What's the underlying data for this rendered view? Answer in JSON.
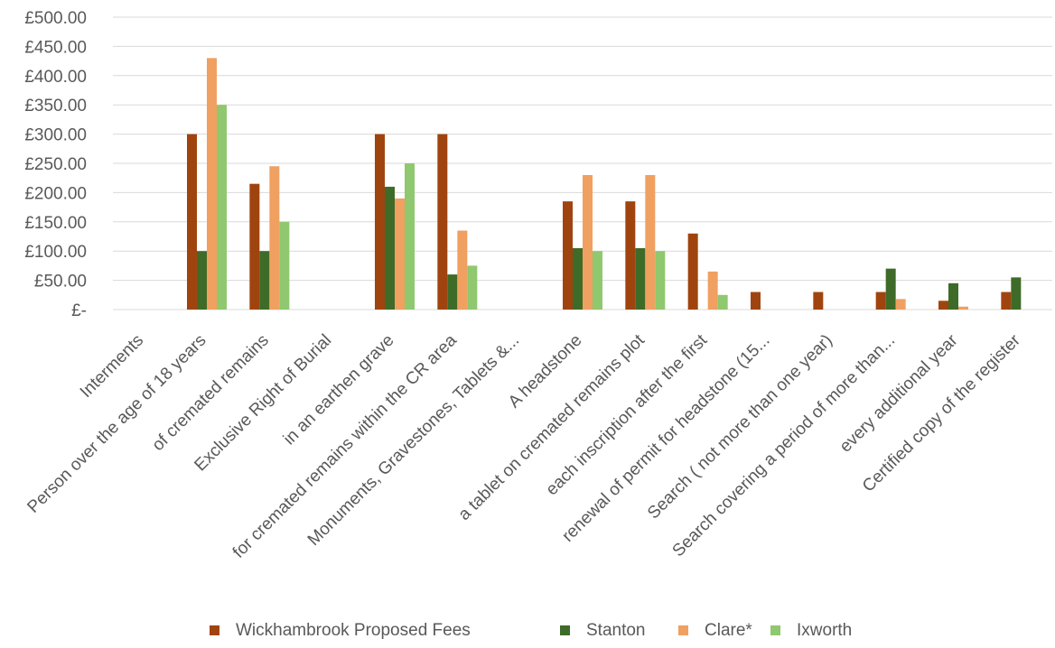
{
  "chart_data": {
    "type": "bar",
    "categories": [
      "Interments",
      "Person over the age of 18 years",
      "of cremated remains",
      "Exclusive Right of Burial",
      "in an earthen grave",
      "for cremated remains within the CR area",
      "Monuments, Gravestones, Tablets &...",
      "A headstone",
      "a tablet on cremated remains plot",
      "each inscription after the first",
      "renewal of permit for headstone (15...",
      "Search ( not more than one year)",
      "Search covering a period of more than...",
      "every additional year",
      "Certified copy of the register"
    ],
    "series": [
      {
        "name": "Wickhambrook Proposed Fees",
        "color": "#a0440f",
        "values": [
          0,
          300,
          215,
          0,
          300,
          300,
          0,
          185,
          185,
          130,
          30,
          30,
          30,
          15,
          30
        ]
      },
      {
        "name": "Stanton",
        "color": "#3e6b28",
        "values": [
          0,
          100,
          100,
          0,
          210,
          60,
          0,
          105,
          105,
          0,
          0,
          0,
          70,
          45,
          55
        ]
      },
      {
        "name": "Clare*",
        "color": "#f0a060",
        "values": [
          0,
          430,
          245,
          0,
          190,
          135,
          0,
          230,
          230,
          65,
          0,
          0,
          18,
          5,
          0
        ]
      },
      {
        "name": "Ixworth",
        "color": "#8fc86e",
        "values": [
          0,
          350,
          150,
          0,
          250,
          75,
          0,
          100,
          100,
          25,
          0,
          0,
          0,
          0,
          0
        ]
      }
    ],
    "yticks": [
      "£-",
      "£50.00",
      "£100.00",
      "£150.00",
      "£200.00",
      "£250.00",
      "£300.00",
      "£350.00",
      "£400.00",
      "£450.00",
      "£500.00"
    ],
    "ylim": [
      0,
      500
    ],
    "grid": true,
    "legend_position": "bottom"
  }
}
